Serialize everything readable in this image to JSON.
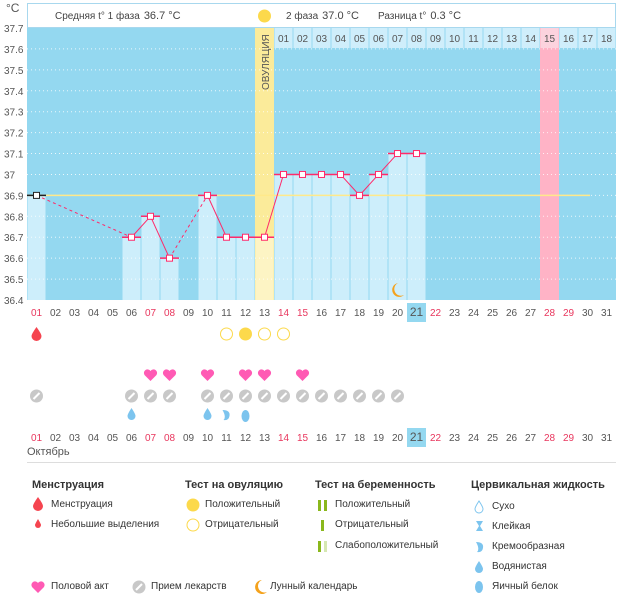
{
  "header": {
    "phase1_label": "Средняя t° 1 фаза",
    "phase1_value": "36.7 °C",
    "phase2_label": "2 фаза",
    "phase2_value": "37.0 °C",
    "diff_label": "Разница t°",
    "diff_value": "0.3 °C",
    "ovulation_label": "ОВУЛЯЦИЯ"
  },
  "unit": "°C",
  "month": "Октябрь",
  "phase2_days": [
    "01",
    "02",
    "03",
    "04",
    "05",
    "06",
    "07",
    "08",
    "09",
    "10",
    "11",
    "12",
    "13",
    "14",
    "15",
    "16",
    "17",
    "18"
  ],
  "colors": {
    "bg": "#94d8f0",
    "bar": "#cdeefb",
    "line": "#ff2a6a",
    "coverline": "#ffe98a",
    "ovulation": "#fbeb9a",
    "highlight": "#ffb3c6"
  },
  "chart_data": {
    "type": "line",
    "ylim": [
      36.4,
      37.7
    ],
    "yticks": [
      "36.4",
      "36.5",
      "36.6",
      "36.7",
      "36.8",
      "36.9",
      "37",
      "37.1",
      "37.2",
      "37.3",
      "37.4",
      "37.5",
      "37.6",
      "37.7"
    ],
    "days": [
      "01",
      "02",
      "03",
      "04",
      "05",
      "06",
      "07",
      "08",
      "09",
      "10",
      "11",
      "12",
      "13",
      "14",
      "15",
      "16",
      "17",
      "18",
      "19",
      "20",
      "21",
      "22",
      "23",
      "24",
      "25",
      "26",
      "27",
      "28",
      "29",
      "30",
      "31"
    ],
    "red_days": [
      "01",
      "07",
      "08",
      "14",
      "15",
      "22",
      "28",
      "29"
    ],
    "selected_day": "21",
    "temperatures": [
      36.9,
      null,
      null,
      null,
      null,
      36.7,
      36.8,
      36.6,
      null,
      36.9,
      36.7,
      36.7,
      36.7,
      37.0,
      37.0,
      37.0,
      37.0,
      36.9,
      37.0,
      37.1,
      37.1,
      null,
      null,
      null,
      null,
      null,
      null,
      null,
      null,
      null,
      null
    ],
    "coverline": 36.9,
    "ovulation_day": "13",
    "highlight_day": "28",
    "moon_day": "20"
  },
  "markers": {
    "menstruation": [
      "01"
    ],
    "ovulation_positive": [
      "12"
    ],
    "ovulation_negative": [
      "11",
      "13",
      "14"
    ],
    "intercourse": [
      "07",
      "08",
      "10",
      "12",
      "13",
      "15"
    ],
    "medication": [
      "01",
      "06",
      "07",
      "08",
      "10",
      "11",
      "12",
      "13",
      "14",
      "15",
      "16",
      "17",
      "18",
      "19",
      "20"
    ],
    "mucus": [
      {
        "day": "06",
        "type": "watery"
      },
      {
        "day": "10",
        "type": "watery"
      },
      {
        "day": "11",
        "type": "creamy"
      },
      {
        "day": "12",
        "type": "eggwhite"
      }
    ]
  },
  "legend": {
    "menstruation": {
      "title": "Менструация",
      "items": [
        "Менструация",
        "Небольшие выделения"
      ]
    },
    "ovulation_test": {
      "title": "Тест на овуляцию",
      "items": [
        "Положительный",
        "Отрицательный"
      ]
    },
    "pregnancy_test": {
      "title": "Тест на беременность",
      "items": [
        "Положительный",
        "Отрицательный",
        "Слабоположительный"
      ]
    },
    "cervical": {
      "title": "Цервикальная жидкость",
      "items": [
        "Сухо",
        "Клейкая",
        "Кремообразная",
        "Водянистая",
        "Яичный белок"
      ]
    },
    "other": [
      "Половой акт",
      "Прием лекарств",
      "Лунный календарь"
    ]
  }
}
